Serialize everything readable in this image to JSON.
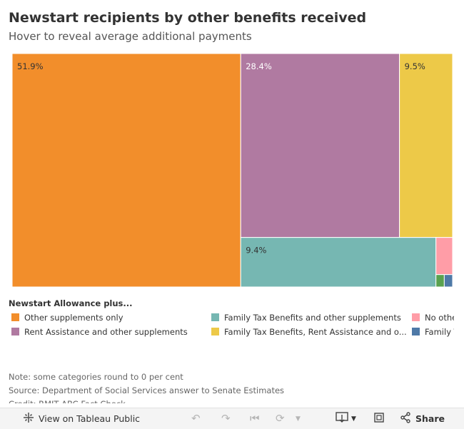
{
  "header": {
    "title": "Newstart recipients by other benefits received",
    "subtitle": "Hover to reveal average additional payments"
  },
  "legend": {
    "title": "Newstart Allowance plus...",
    "items": [
      {
        "label": "Other supplements only",
        "color": "#f28e2b"
      },
      {
        "label": "Rent Assistance and other supplements",
        "color": "#b07aa1"
      },
      {
        "label": "Family Tax Benefits and other supplements",
        "color": "#76b7b2"
      },
      {
        "label": "Family Tax Benefits, Rent Assistance and o...",
        "color": "#edc948"
      },
      {
        "label": "No othe",
        "color": "#ff9da7"
      },
      {
        "label": "Family T",
        "color": "#4e79a7"
      }
    ]
  },
  "chart_data": {
    "type": "treemap",
    "title": "Newstart recipients by other benefits received",
    "subtitle": "Hover to reveal average additional payments",
    "unit": "%",
    "series": [
      {
        "name": "Other supplements only",
        "value": 51.9,
        "label": "51.9%",
        "color": "#f28e2b"
      },
      {
        "name": "Rent Assistance and other supplements",
        "value": 28.4,
        "label": "28.4%",
        "color": "#b07aa1"
      },
      {
        "name": "Family Tax Benefits, Rent Assistance and o...",
        "value": 9.5,
        "label": "9.5%",
        "color": "#edc948"
      },
      {
        "name": "Family Tax Benefits and other supplements",
        "value": 9.4,
        "label": "9.4%",
        "color": "#76b7b2"
      },
      {
        "name": "No othe",
        "value": 0.6,
        "label": "",
        "color": "#ff9da7"
      },
      {
        "name": "",
        "value": 0.1,
        "label": "",
        "color": "#59a14f"
      },
      {
        "name": "Family T",
        "value": 0.1,
        "label": "",
        "color": "#4e79a7"
      }
    ]
  },
  "notes": [
    "Note: some categories round to 0 per cent",
    "Source: Department of Social Services answer to Senate Estimates",
    "Credit: RMIT ABC Fact Check"
  ],
  "footer": {
    "view_label": "View on Tableau Public",
    "share_label": "Share"
  }
}
